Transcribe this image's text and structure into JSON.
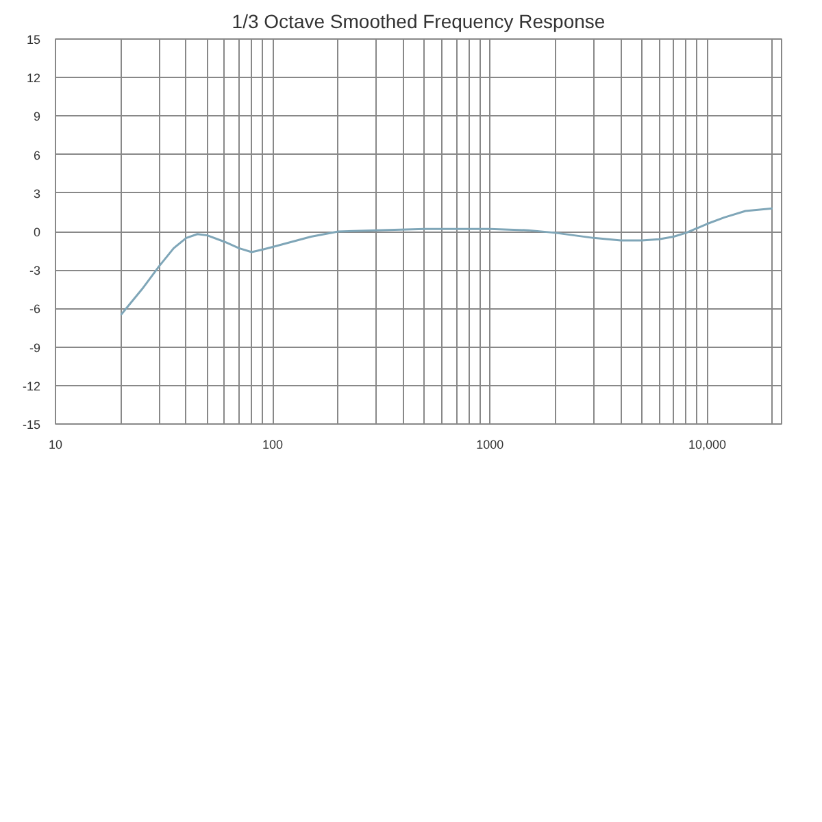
{
  "chart_data": {
    "type": "line",
    "title": "1/3 Octave Smoothed Frequency Response",
    "log": "x",
    "grid": true,
    "line_style": "solid",
    "x": [
      20,
      25,
      30,
      35,
      40,
      45,
      50,
      60,
      70,
      80,
      90,
      100,
      150,
      200,
      300,
      500,
      700,
      1000,
      1500,
      2000,
      3000,
      4000,
      5000,
      6000,
      7000,
      8000,
      10000,
      12000,
      15000,
      20000
    ],
    "series": [
      {
        "color": "#7fa6b8",
        "values": [
          -6.5,
          -4.5,
          -2.7,
          -1.3,
          -0.5,
          -0.2,
          -0.3,
          -0.8,
          -1.3,
          -1.6,
          -1.4,
          -1.2,
          -0.4,
          0.0,
          0.1,
          0.2,
          0.2,
          0.2,
          0.1,
          -0.1,
          -0.5,
          -0.7,
          -0.7,
          -0.6,
          -0.4,
          -0.1,
          0.6,
          1.1,
          1.6,
          1.8
        ]
      }
    ],
    "xlim": [
      10,
      22000
    ],
    "ylim": [
      -15,
      15
    ],
    "xticks": [
      10,
      {
        "value": 20,
        "label": null
      },
      {
        "value": 30,
        "label": null
      },
      {
        "value": 40,
        "label": null
      },
      {
        "value": 50,
        "label": null
      },
      {
        "value": 60,
        "label": null
      },
      {
        "value": 70,
        "label": null
      },
      {
        "value": 80,
        "label": null
      },
      {
        "value": 90,
        "label": null
      },
      100,
      {
        "value": 200,
        "label": null
      },
      {
        "value": 300,
        "label": null
      },
      {
        "value": 400,
        "label": null
      },
      {
        "value": 500,
        "label": null
      },
      {
        "value": 600,
        "label": null
      },
      {
        "value": 700,
        "label": null
      },
      {
        "value": 800,
        "label": null
      },
      {
        "value": 900,
        "label": null
      },
      1000,
      {
        "value": 2000,
        "label": null
      },
      {
        "value": 3000,
        "label": null
      },
      {
        "value": 4000,
        "label": null
      },
      {
        "value": 5000,
        "label": null
      },
      {
        "value": 6000,
        "label": null
      },
      {
        "value": 7000,
        "label": null
      },
      {
        "value": 8000,
        "label": null
      },
      {
        "value": 9000,
        "label": null
      },
      {
        "value": 10000,
        "label": "10,000"
      },
      {
        "value": 20000,
        "label": null
      }
    ],
    "yticks": [
      15,
      12,
      9,
      6,
      3,
      0,
      -3,
      -6,
      -9,
      -12,
      -15
    ]
  }
}
